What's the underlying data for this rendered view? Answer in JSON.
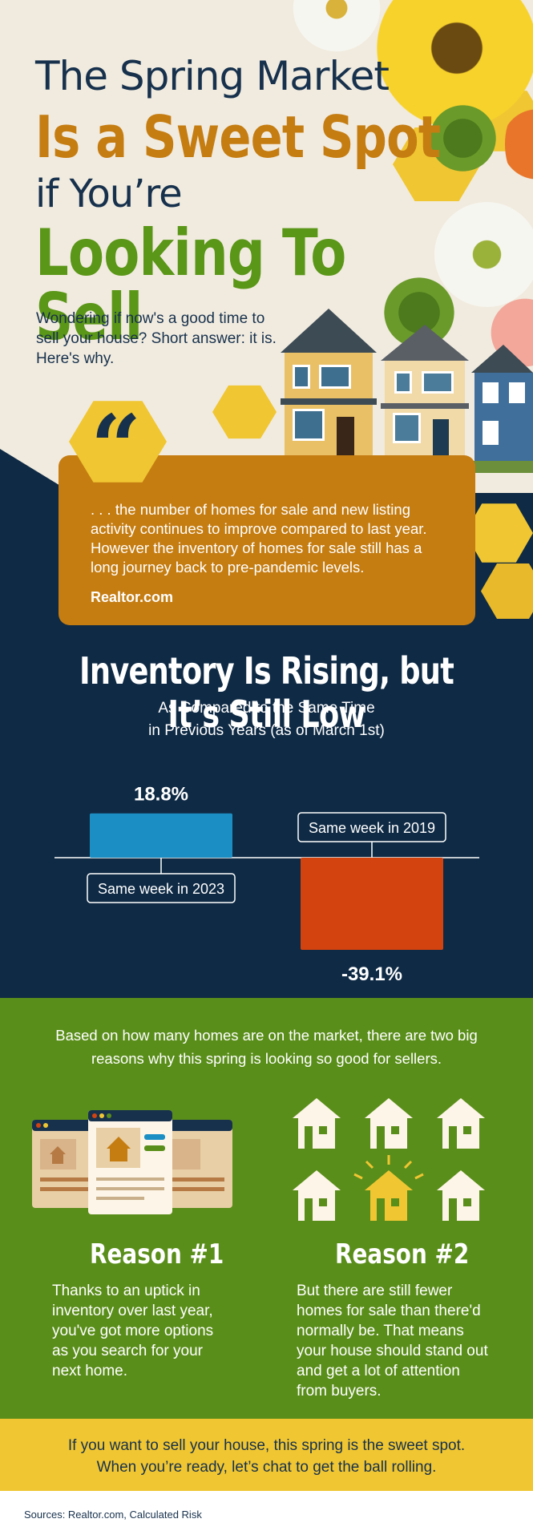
{
  "hero": {
    "title_line1": "The Spring Market",
    "title_line2": "Is a Sweet Spot",
    "title_line3": "if You’re",
    "title_line4": "Looking To Sell",
    "intro": "Wondering if now's a good time to sell your house? Short answer: it is. Here's why."
  },
  "quote": {
    "mark": "“",
    "text": ". . . the number of homes for sale and new listing activity continues to improve compared to last year. However the inventory of homes for sale still has a long journey back to pre-pandemic levels.",
    "source": "Realtor.com"
  },
  "inventory": {
    "title": "Inventory Is Rising, but It’s Still Low",
    "subtitle_line1": "As Compared to the Same Time",
    "subtitle_line2": "in Previous Years (as of March 1st)"
  },
  "chart_data": {
    "type": "bar",
    "categories": [
      "Same week in 2023",
      "Same week in 2019"
    ],
    "values": [
      18.8,
      -39.1
    ],
    "data_labels": [
      "18.8%",
      "-39.1%"
    ],
    "colors": [
      "#1b8fc4",
      "#d24310"
    ],
    "title": "Inventory Is Rising, but It’s Still Low",
    "xlabel": "",
    "ylabel": "",
    "grid": false
  },
  "reasons": {
    "intro": "Based on how many homes are on the market, there are two big reasons why this spring is looking so good for sellers.",
    "reason1_title": "Reason #1",
    "reason1_text": "Thanks to an uptick in inventory over last year, you've got more options as you search for your next home.",
    "reason2_title": "Reason #2",
    "reason2_text": "But there are still fewer homes for sale than there'd normally be. That means your house should stand out and get a lot of attention from buyers."
  },
  "cta": {
    "line1": "If you want to sell your house, this spring is the sweet spot.",
    "line2": "When you’re ready, let’s chat to get the ball rolling."
  },
  "footer": {
    "sources": "Sources: Realtor.com, Calculated Risk"
  },
  "colors": {
    "navy": "#0f2a45",
    "gold": "#c57d12",
    "green": "#5a8e1a",
    "yellow": "#f0c632",
    "blue_bar": "#1b8fc4",
    "red_bar": "#d24310"
  },
  "icons": [
    "quote-icon",
    "listing-browser-icon",
    "house-icon",
    "highlighted-house-icon"
  ]
}
